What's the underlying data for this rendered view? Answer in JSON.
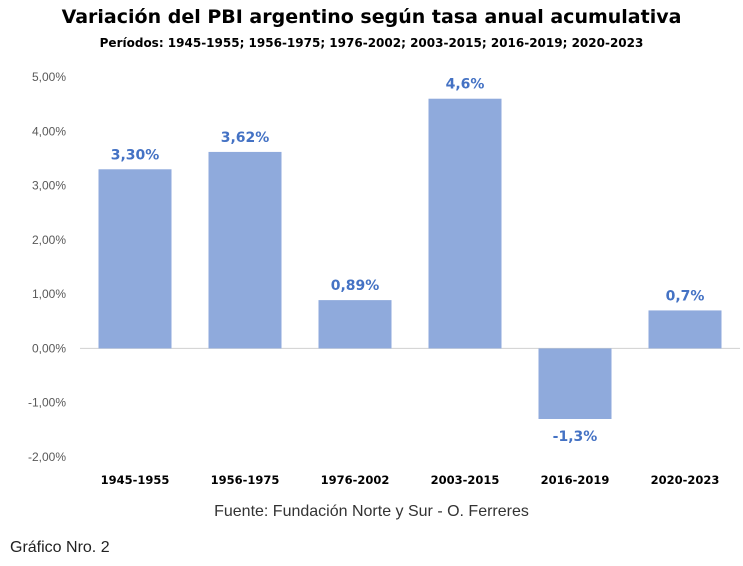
{
  "chart_data": {
    "type": "bar",
    "title": "Variación del PBI argentino según tasa anual acumulativa",
    "subtitle": "Períodos: 1945-1955; 1956-1975; 1976-2002; 2003-2015; 2016-2019; 2020-2023",
    "categories": [
      "1945-1955",
      "1956-1975",
      "1976-2002",
      "2003-2015",
      "2016-2019",
      "2020-2023"
    ],
    "values": [
      3.3,
      3.62,
      0.89,
      4.6,
      -1.3,
      0.7
    ],
    "data_labels": [
      "3,30%",
      "3,62%",
      "0,89%",
      "4,6%",
      "-1,3%",
      "0,7%"
    ],
    "ylim": [
      -2,
      5
    ],
    "yticks": [
      5,
      4,
      3,
      2,
      1,
      0,
      -1,
      -2
    ],
    "ytick_labels": [
      "5,00%",
      "4,00%",
      "3,00%",
      "2,00%",
      "1,00%",
      "0,00%",
      "-1,00%",
      "-2,00%"
    ],
    "xlabel": "",
    "ylabel": "",
    "grid": false,
    "bar_color": "#8faadc",
    "label_color": "#4472c4",
    "source": "Fuente: Fundación Norte y Sur - O. Ferreres"
  },
  "caption": "Gráfico Nro. 2"
}
